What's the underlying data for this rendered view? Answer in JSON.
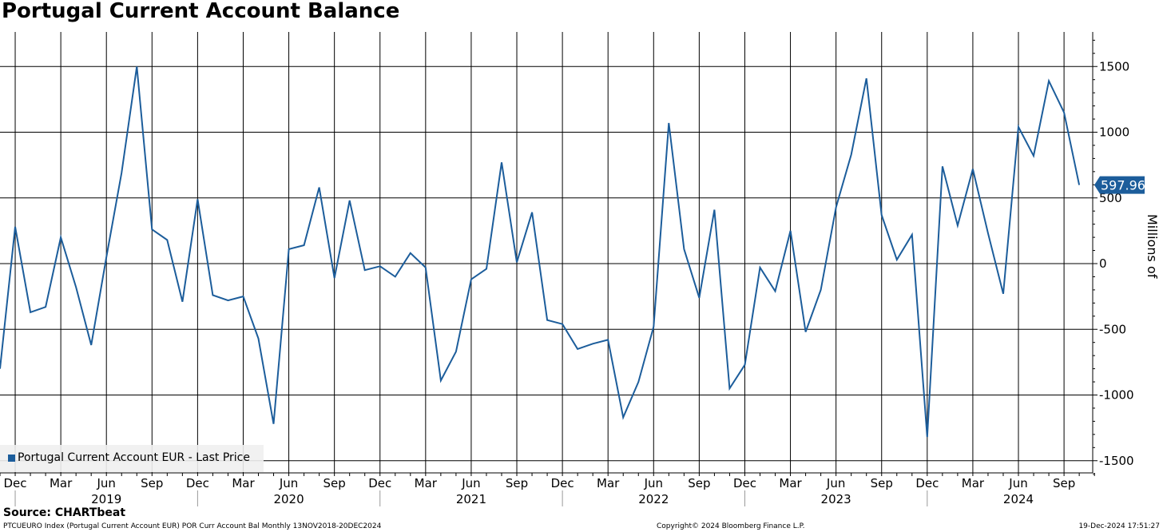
{
  "title": "Portugal Current Account Balance",
  "source": "Source: CHARTbeat",
  "footer": {
    "left": "PTCUEURO Index (Portugal Current Account EUR) POR Curr Account Bal  Monthly 13NOV2018-20DEC2024",
    "center": "Copyright© 2024 Bloomberg Finance L.P.",
    "right": "19-Dec-2024 17:51:27"
  },
  "colors": {
    "series": "#1c5d9b",
    "grid": "#000000",
    "tag_bg": "#1c5d9b"
  },
  "chart_data": {
    "type": "line",
    "title": "Portugal Current Account Balance",
    "ylabel": "Millions of",
    "ylim": [
      -1600,
      1750
    ],
    "yticks": [
      1500,
      1000,
      500,
      0,
      -500,
      -1000,
      -1500
    ],
    "grid": true,
    "legend_position": "bottom-left",
    "x_start_month": "2018-11",
    "month_labels": [
      {
        "label": "Dec",
        "index": 1
      },
      {
        "label": "Mar",
        "index": 4
      },
      {
        "label": "Jun",
        "index": 7
      },
      {
        "label": "Sep",
        "index": 10
      },
      {
        "label": "Dec",
        "index": 13
      },
      {
        "label": "Mar",
        "index": 16
      },
      {
        "label": "Jun",
        "index": 19
      },
      {
        "label": "Sep",
        "index": 22
      },
      {
        "label": "Dec",
        "index": 25
      },
      {
        "label": "Mar",
        "index": 28
      },
      {
        "label": "Jun",
        "index": 31
      },
      {
        "label": "Sep",
        "index": 34
      },
      {
        "label": "Dec",
        "index": 37
      },
      {
        "label": "Mar",
        "index": 40
      },
      {
        "label": "Jun",
        "index": 43
      },
      {
        "label": "Sep",
        "index": 46
      },
      {
        "label": "Dec",
        "index": 49
      },
      {
        "label": "Mar",
        "index": 52
      },
      {
        "label": "Jun",
        "index": 55
      },
      {
        "label": "Sep",
        "index": 58
      },
      {
        "label": "Dec",
        "index": 61
      },
      {
        "label": "Mar",
        "index": 64
      },
      {
        "label": "Jun",
        "index": 67
      },
      {
        "label": "Sep",
        "index": 70
      }
    ],
    "year_labels": [
      {
        "label": "2019",
        "start": 1,
        "end": 13
      },
      {
        "label": "2020",
        "start": 13,
        "end": 25
      },
      {
        "label": "2021",
        "start": 25,
        "end": 37
      },
      {
        "label": "2022",
        "start": 37,
        "end": 49
      },
      {
        "label": "2023",
        "start": 49,
        "end": 61
      },
      {
        "label": "2024",
        "start": 61,
        "end": 73
      }
    ],
    "series": [
      {
        "name": "Portugal Current Account EUR - Last Price",
        "legend_label": "Portugal Current Account EUR - Last Price",
        "last_value_label": "597.96",
        "values": [
          -800,
          280,
          -370,
          -330,
          200,
          -180,
          -620,
          50,
          690,
          1500,
          260,
          180,
          -290,
          490,
          -240,
          -280,
          -250,
          -570,
          -1220,
          110,
          140,
          580,
          -110,
          480,
          -50,
          -20,
          -100,
          80,
          -30,
          -890,
          -670,
          -120,
          -40,
          770,
          10,
          390,
          -430,
          -460,
          -650,
          -610,
          -580,
          -1170,
          -900,
          -480,
          1070,
          110,
          -260,
          410,
          -950,
          -770,
          -30,
          -210,
          250,
          -520,
          -200,
          430,
          830,
          1410,
          370,
          30,
          220,
          -1320,
          740,
          290,
          720,
          230,
          -230,
          1040,
          820,
          1390,
          1150,
          598
        ]
      }
    ]
  }
}
